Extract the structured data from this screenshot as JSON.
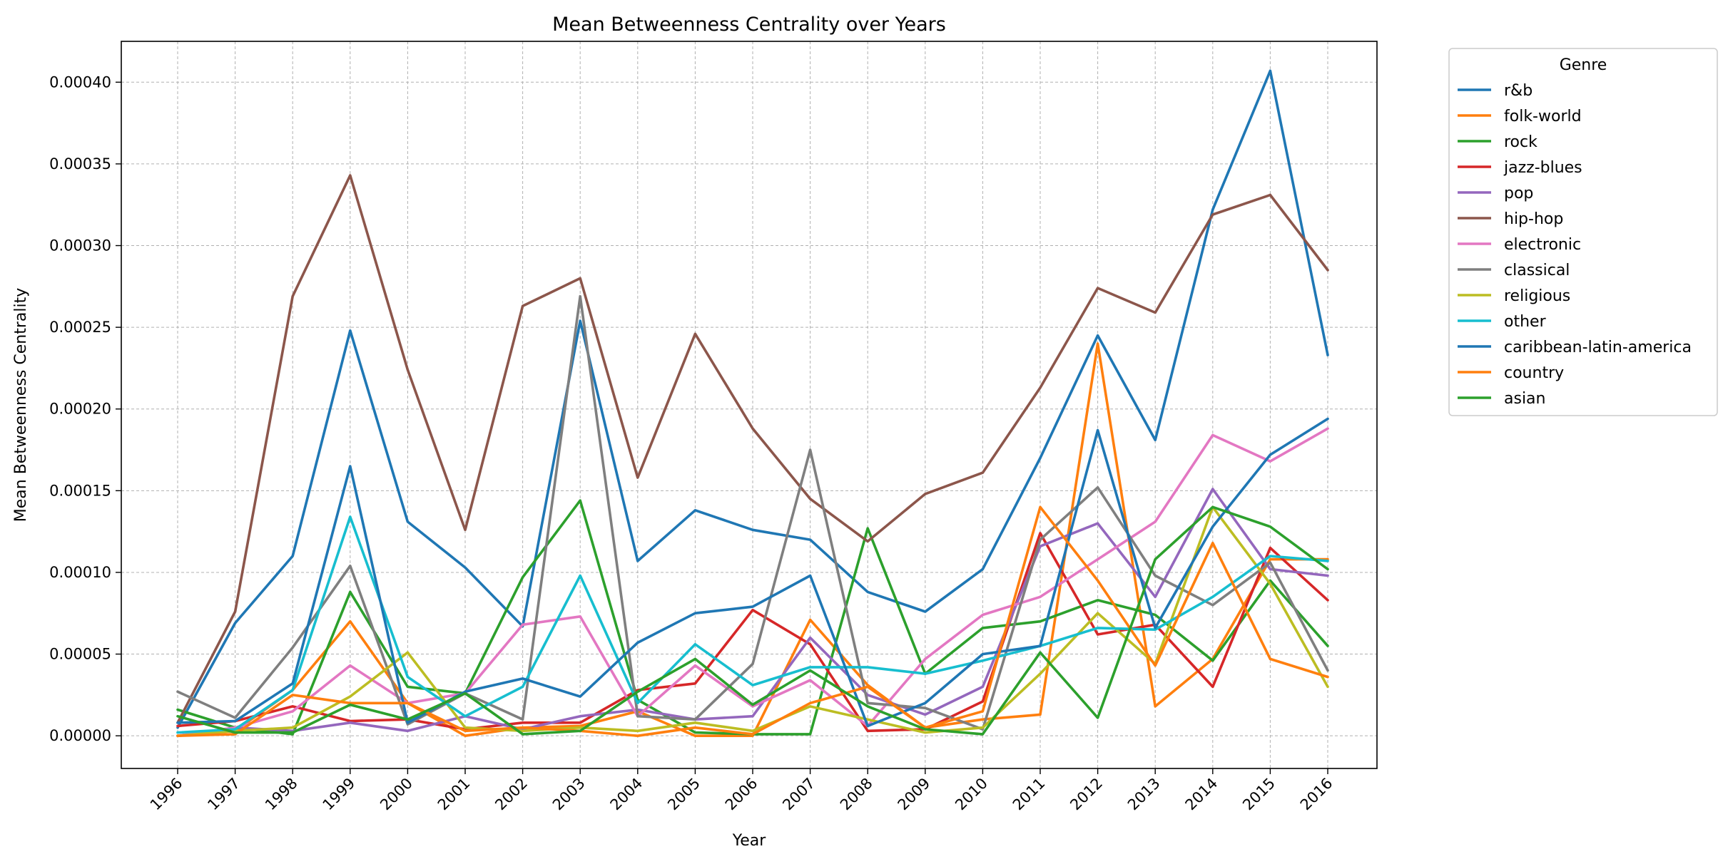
{
  "chart_data": {
    "type": "line",
    "title": "Mean Betweenness Centrality over Years",
    "xlabel": "Year",
    "ylabel": "Mean Betweenness Centrality",
    "x": [
      "1996",
      "1997",
      "1998",
      "1999",
      "2000",
      "2001",
      "2002",
      "2003",
      "2004",
      "2005",
      "2006",
      "2007",
      "2008",
      "2009",
      "2010",
      "2011",
      "2012",
      "2013",
      "2014",
      "2015",
      "2016"
    ],
    "ylim": [
      -2e-05,
      0.000425
    ],
    "yticks": [
      "0.00000",
      "0.00005",
      "0.00010",
      "0.00015",
      "0.00020",
      "0.00025",
      "0.00030",
      "0.00035",
      "0.00040"
    ],
    "ytick_values": [
      0,
      5e-05,
      0.0001,
      0.00015,
      0.0002,
      0.00025,
      0.0003,
      0.00035,
      0.0004
    ],
    "grid": true,
    "legend": {
      "title": "Genre",
      "placement": "outside-right"
    },
    "series": [
      {
        "name": "r&b",
        "color": "#1f77b4",
        "values": [
          5e-06,
          6.9e-05,
          0.00011,
          0.000248,
          0.000131,
          0.000103,
          6.7e-05,
          0.000254,
          0.000107,
          0.000138,
          0.000126,
          0.00012,
          8.8e-05,
          7.6e-05,
          0.000102,
          0.00017,
          0.000245,
          0.000181,
          0.000322,
          0.000407,
          0.000233
        ]
      },
      {
        "name": "folk-world",
        "color": "#ff7f0e",
        "values": [
          0.0,
          3e-06,
          2.8e-05,
          7e-05,
          2e-05,
          0.0,
          5e-06,
          6e-06,
          1.5e-05,
          0.0,
          0.0,
          7.1e-05,
          3.1e-05,
          5e-06,
          1e-05,
          1.3e-05,
          0.00024,
          1.8e-05,
          4.7e-05,
          0.000108,
          0.000108
        ]
      },
      {
        "name": "rock",
        "color": "#2ca02c",
        "values": [
          1.6e-05,
          5e-06,
          1e-06,
          8.8e-05,
          3e-05,
          2.6e-05,
          9.7e-05,
          0.000144,
          2.2e-05,
          2e-06,
          1e-06,
          1e-06,
          0.000127,
          3.8e-05,
          6.6e-05,
          7e-05,
          8.3e-05,
          7.4e-05,
          4.6e-05,
          9.5e-05,
          5.5e-05
        ]
      },
      {
        "name": "jazz-blues",
        "color": "#d62728",
        "values": [
          6e-06,
          9e-06,
          1.8e-05,
          9e-06,
          1e-05,
          4e-06,
          8e-06,
          8e-06,
          2.8e-05,
          3.2e-05,
          7.7e-05,
          5.6e-05,
          3e-06,
          4e-06,
          2.1e-05,
          0.000124,
          6.2e-05,
          6.8e-05,
          3e-05,
          0.000115,
          8.3e-05
        ]
      },
      {
        "name": "pop",
        "color": "#9467bd",
        "values": [
          0.0,
          5e-06,
          3e-06,
          8e-06,
          3e-06,
          1.2e-05,
          4e-06,
          1.2e-05,
          1.6e-05,
          1e-05,
          1.2e-05,
          6e-05,
          2.5e-05,
          1.3e-05,
          3e-05,
          0.000116,
          0.00013,
          8.5e-05,
          0.000151,
          0.000102,
          9.8e-05
        ]
      },
      {
        "name": "hip-hop",
        "color": "#8c564b",
        "values": [
          8e-06,
          7.6e-05,
          0.000269,
          0.000343,
          0.000224,
          0.000126,
          0.000263,
          0.00028,
          0.000158,
          0.000246,
          0.000188,
          0.000145,
          0.000119,
          0.000148,
          0.000161,
          0.000213,
          0.000274,
          0.000259,
          0.000319,
          0.000331,
          0.000285
        ]
      },
      {
        "name": "electronic",
        "color": "#e377c2",
        "values": [
          0.0,
          5e-06,
          1.5e-05,
          4.3e-05,
          2e-05,
          2.6e-05,
          6.8e-05,
          7.3e-05,
          1.2e-05,
          4.3e-05,
          1.8e-05,
          3.4e-05,
          6e-06,
          4.7e-05,
          7.4e-05,
          8.5e-05,
          0.000108,
          0.000131,
          0.000184,
          0.000168,
          0.000188
        ]
      },
      {
        "name": "classical",
        "color": "#7f7f7f",
        "values": [
          2.7e-05,
          1.1e-05,
          5.4e-05,
          0.000104,
          7e-06,
          2.6e-05,
          1e-05,
          0.000269,
          1.2e-05,
          1e-05,
          4.4e-05,
          0.000175,
          2e-05,
          1.7e-05,
          4e-06,
          0.00012,
          0.000152,
          9.8e-05,
          8e-05,
          0.000106,
          4e-05
        ]
      },
      {
        "name": "religious",
        "color": "#bcbd22",
        "values": [
          0.0,
          3e-06,
          5e-06,
          2.4e-05,
          5.1e-05,
          5e-06,
          3e-06,
          5e-06,
          3e-06,
          8e-06,
          3e-06,
          1.8e-05,
          1e-05,
          2e-06,
          5e-06,
          3.8e-05,
          7.5e-05,
          4.4e-05,
          0.00014,
          9.3e-05,
          3e-05
        ]
      },
      {
        "name": "other",
        "color": "#17becf",
        "values": [
          2e-06,
          4e-06,
          2.8e-05,
          0.000134,
          3.6e-05,
          1.2e-05,
          3e-05,
          9.8e-05,
          2e-05,
          5.6e-05,
          3.1e-05,
          4.2e-05,
          4.2e-05,
          3.8e-05,
          4.6e-05,
          5.5e-05,
          6.6e-05,
          6.5e-05,
          8.5e-05,
          0.00011,
          0.000107
        ]
      },
      {
        "name": "caribbean-latin-america",
        "color": "#1f77b4",
        "values": [
          8e-06,
          9e-06,
          3.2e-05,
          0.000165,
          8e-06,
          2.7e-05,
          3.5e-05,
          2.4e-05,
          5.7e-05,
          7.5e-05,
          7.9e-05,
          9.8e-05,
          6e-06,
          2e-05,
          5e-05,
          5.5e-05,
          0.000187,
          6.6e-05,
          0.000128,
          0.000172,
          0.000194
        ]
      },
      {
        "name": "country",
        "color": "#ff7f0e",
        "values": [
          0.0,
          1e-06,
          2.5e-05,
          2e-05,
          2e-05,
          3e-06,
          5e-06,
          3e-06,
          0.0,
          5e-06,
          1e-06,
          2e-05,
          3e-05,
          5e-06,
          1.5e-05,
          0.00014,
          9.5e-05,
          4.3e-05,
          0.000118,
          4.7e-05,
          3.6e-05
        ]
      },
      {
        "name": "asian",
        "color": "#2ca02c",
        "values": [
          1.2e-05,
          2e-06,
          2e-06,
          1.9e-05,
          1e-05,
          2.6e-05,
          1e-06,
          3e-06,
          2.7e-05,
          4.7e-05,
          1.9e-05,
          4e-05,
          1.8e-05,
          4e-06,
          1e-06,
          5.1e-05,
          1.1e-05,
          0.000108,
          0.00014,
          0.000128,
          0.000102
        ]
      }
    ]
  }
}
